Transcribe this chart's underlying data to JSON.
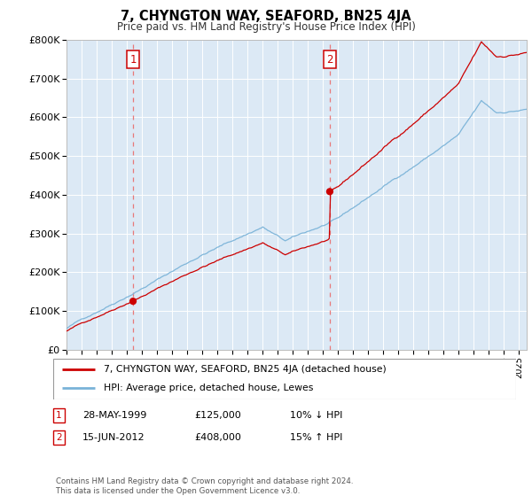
{
  "title": "7, CHYNGTON WAY, SEAFORD, BN25 4JA",
  "subtitle": "Price paid vs. HM Land Registry's House Price Index (HPI)",
  "legend_line1": "7, CHYNGTON WAY, SEAFORD, BN25 4JA (detached house)",
  "legend_line2": "HPI: Average price, detached house, Lewes",
  "transaction1_date": "28-MAY-1999",
  "transaction1_price": "£125,000",
  "transaction1_hpi": "10% ↓ HPI",
  "transaction2_date": "15-JUN-2012",
  "transaction2_price": "£408,000",
  "transaction2_hpi": "15% ↑ HPI",
  "footer": "Contains HM Land Registry data © Crown copyright and database right 2024.\nThis data is licensed under the Open Government Licence v3.0.",
  "hpi_color": "#7ab3d8",
  "price_color": "#cc0000",
  "vline_color": "#e87878",
  "dot_color": "#cc0000",
  "ylim": [
    0,
    800000
  ],
  "yticks": [
    0,
    100000,
    200000,
    300000,
    400000,
    500000,
    600000,
    700000,
    800000
  ],
  "ytick_labels": [
    "£0",
    "£100K",
    "£200K",
    "£300K",
    "£400K",
    "£500K",
    "£600K",
    "£700K",
    "£800K"
  ],
  "xmin": 1995.0,
  "xmax": 2025.5,
  "transaction1_x": 1999.41,
  "transaction1_y": 125000,
  "transaction2_x": 2012.45,
  "transaction2_y": 408000,
  "background_color": "#ffffff",
  "plot_bg_color": "#dce9f5",
  "grid_color": "#ffffff"
}
